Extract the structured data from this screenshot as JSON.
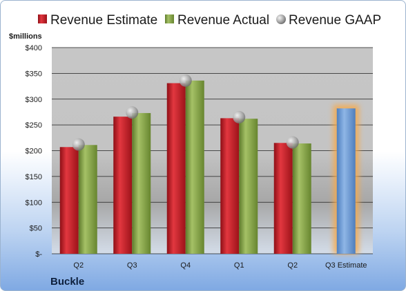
{
  "chart_data": {
    "type": "bar",
    "title": "",
    "company": "Buckle",
    "ylabel": "$millions",
    "ylim": [
      0,
      400
    ],
    "yticks": [
      0,
      50,
      100,
      150,
      200,
      250,
      300,
      350,
      400
    ],
    "ytick_labels": [
      "$-",
      "$50",
      "$100",
      "$150",
      "$200",
      "$250",
      "$300",
      "$350",
      "$400"
    ],
    "categories": [
      "Q2",
      "Q3",
      "Q4",
      "Q1",
      "Q2",
      "Q3 Estimate"
    ],
    "series": [
      {
        "name": "Revenue Estimate",
        "color": "#c9212b",
        "values": [
          207,
          266,
          331,
          263,
          215,
          null
        ]
      },
      {
        "name": "Revenue Actual",
        "color": "#8fac4c",
        "values": [
          211,
          273,
          336,
          262,
          214,
          null
        ]
      },
      {
        "name": "Revenue GAAP",
        "color": "#b0b0b0",
        "values": [
          212,
          274,
          336,
          265,
          216,
          null
        ]
      }
    ],
    "projected": {
      "category": "Q3 Estimate",
      "value": 282,
      "color": "#6f9fd8",
      "glow": "#f7a94a"
    },
    "legend_position": "top",
    "grid": true
  }
}
